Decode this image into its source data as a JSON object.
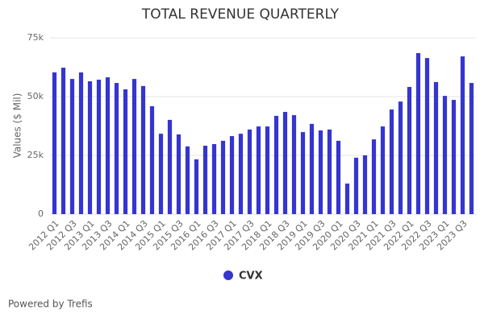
{
  "chart_data": {
    "type": "bar",
    "title": "TOTAL REVENUE QUARTERLY",
    "y_label": "Values ($ Mil)",
    "categories": [
      "2012 Q1",
      null,
      "2012 Q3",
      null,
      "2013 Q1",
      null,
      "2013 Q3",
      null,
      "2014 Q1",
      null,
      "2014 Q3",
      null,
      "2015 Q1",
      null,
      "2015 Q3",
      null,
      "2016 Q1",
      null,
      "2016 Q3",
      null,
      "2017 Q1",
      null,
      "2017 Q3",
      null,
      "2018 Q1",
      null,
      "2018 Q3",
      null,
      "2019 Q1",
      null,
      "2019 Q3",
      null,
      "2020 Q1",
      null,
      "2020 Q3",
      null,
      "2021 Q1",
      null,
      "2021 Q3",
      null,
      "2022 Q1",
      null,
      "2022 Q3",
      null,
      "2023 Q1",
      null,
      "2023 Q3",
      null
    ],
    "series": [
      {
        "name": "CVX",
        "color": "#3535d0",
        "values": [
          60300,
          62300,
          57500,
          60300,
          56500,
          57200,
          58200,
          55800,
          53100,
          57500,
          54500,
          45900,
          34200,
          40100,
          33900,
          28800,
          23300,
          29100,
          29800,
          31200,
          33200,
          34200,
          36000,
          37300,
          37300,
          41800,
          43500,
          42100,
          34900,
          38400,
          35600,
          36000,
          31200,
          13000,
          24000,
          25000,
          31800,
          37300,
          44500,
          47900,
          54100,
          68500,
          66400,
          56200,
          50300,
          48600,
          67100,
          55800
        ]
      }
    ],
    "ylim": [
      0,
      75000
    ],
    "yticks": [
      0,
      {
        "value": 25000,
        "label": "25k"
      },
      {
        "value": 50000,
        "label": "50k"
      },
      {
        "value": 75000,
        "label": "75k"
      }
    ],
    "grid": true,
    "legend": "bottom",
    "footer": "Powered by Trefis"
  }
}
